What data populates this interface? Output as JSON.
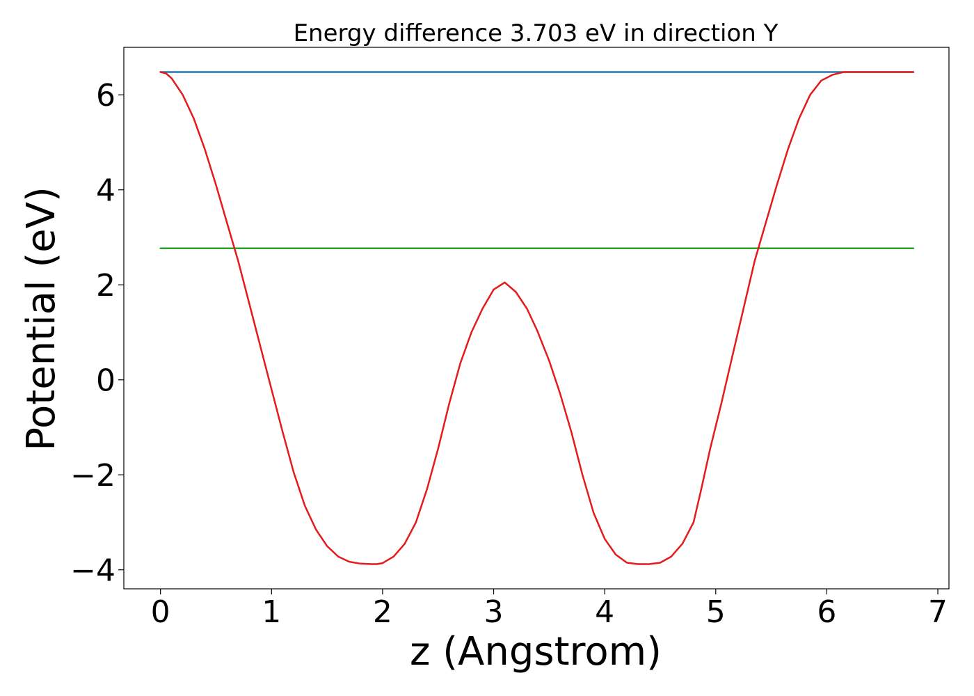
{
  "chart_data": {
    "type": "line",
    "title": "Energy difference 3.703 eV in direction Y",
    "xlabel": "z (Angstrom)",
    "ylabel": "Potential (eV)",
    "xlim": [
      -0.33,
      7.1
    ],
    "ylim": [
      -4.4,
      7.0
    ],
    "xticks": [
      0,
      1,
      2,
      3,
      4,
      5,
      6,
      7
    ],
    "yticks": [
      -4,
      -2,
      0,
      2,
      4,
      6
    ],
    "grid": false,
    "legend": "none",
    "series": [
      {
        "color": "#1f77b4",
        "x": [
          0,
          6.78
        ],
        "y": [
          6.48,
          6.48
        ]
      },
      {
        "color": "#2ca02c",
        "x": [
          0,
          6.78
        ],
        "y": [
          2.77,
          2.77
        ]
      },
      {
        "color": "#e41a1c",
        "x": [
          0.0,
          0.05,
          0.1,
          0.2,
          0.3,
          0.4,
          0.5,
          0.6,
          0.7,
          0.8,
          0.9,
          1.0,
          1.1,
          1.2,
          1.3,
          1.4,
          1.5,
          1.6,
          1.7,
          1.8,
          1.9,
          1.95,
          2.0,
          2.1,
          2.2,
          2.3,
          2.4,
          2.5,
          2.6,
          2.7,
          2.8,
          2.9,
          3.0,
          3.1,
          3.2,
          3.3,
          3.39,
          3.5,
          3.6,
          3.7,
          3.8,
          3.9,
          4.0,
          4.1,
          4.2,
          4.3,
          4.4,
          4.5,
          4.6,
          4.7,
          4.8,
          4.87,
          4.95,
          5.05,
          5.15,
          5.25,
          5.35,
          5.45,
          5.55,
          5.65,
          5.75,
          5.85,
          5.95,
          6.05,
          6.15,
          6.25,
          6.35,
          6.45,
          6.55,
          6.65,
          6.72,
          6.78
        ],
        "y": [
          6.48,
          6.45,
          6.35,
          6.0,
          5.5,
          4.85,
          4.1,
          3.3,
          2.5,
          1.6,
          0.7,
          -0.2,
          -1.1,
          -1.95,
          -2.65,
          -3.15,
          -3.5,
          -3.72,
          -3.83,
          -3.87,
          -3.88,
          -3.88,
          -3.86,
          -3.72,
          -3.45,
          -3.0,
          -2.3,
          -1.45,
          -0.5,
          0.35,
          1.0,
          1.5,
          1.9,
          2.05,
          1.85,
          1.5,
          1.05,
          0.4,
          -0.3,
          -1.1,
          -2.0,
          -2.8,
          -3.35,
          -3.68,
          -3.85,
          -3.88,
          -3.88,
          -3.85,
          -3.72,
          -3.45,
          -3.0,
          -2.3,
          -1.45,
          -0.5,
          0.5,
          1.5,
          2.5,
          3.3,
          4.1,
          4.85,
          5.5,
          6.0,
          6.3,
          6.42,
          6.48,
          6.48,
          6.48,
          6.48,
          6.48,
          6.48,
          6.48,
          6.48
        ]
      }
    ]
  }
}
